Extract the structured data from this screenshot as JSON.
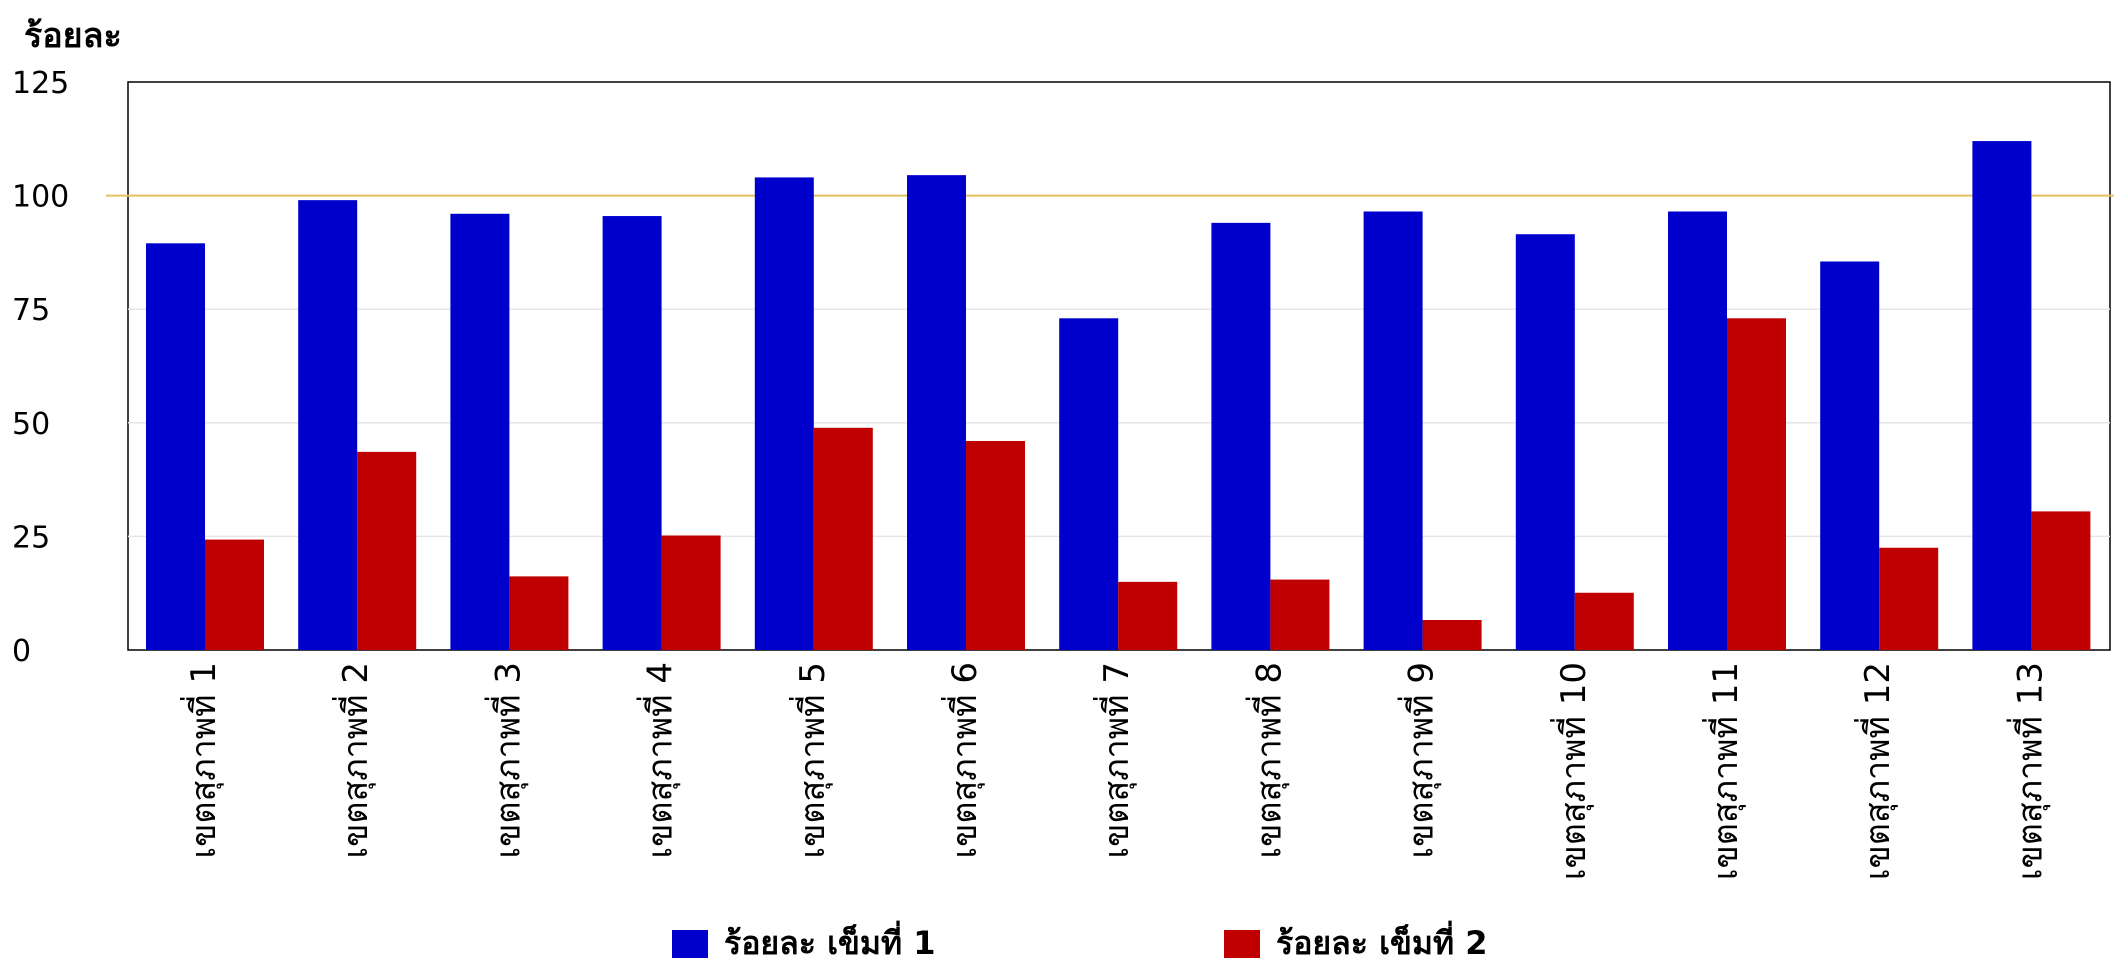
{
  "chart_data": {
    "type": "bar",
    "ylabel": "ร้อยละ",
    "ylim": [
      0,
      125
    ],
    "yticks": [
      0,
      25,
      50,
      75,
      100,
      125
    ],
    "reference_line": 100,
    "grid": true,
    "legend_placement": "bottom",
    "categories": [
      "เขตสุภาพที่ 1",
      "เขตสุภาพที่ 2",
      "เขตสุภาพที่ 3",
      "เขตสุภาพที่ 4",
      "เขตสุภาพที่ 5",
      "เขตสุภาพที่ 6",
      "เขตสุภาพที่ 7",
      "เขตสุภาพที่ 8",
      "เขตสุภาพที่ 9",
      "เขตสุภาพที่ 10",
      "เขตสุภาพที่ 11",
      "เขตสุภาพที่ 12",
      "เขตสุภาพที่ 13"
    ],
    "series": [
      {
        "name": "ร้อยละ เข็มที่ 1",
        "color": "#0000cc",
        "values": [
          89.5,
          99,
          96,
          95.5,
          104,
          104.5,
          73,
          94,
          96.5,
          91.5,
          96.5,
          85.5,
          112
        ]
      },
      {
        "name": "ร้อยละ เข็มที่ 2",
        "color": "#c00000",
        "values": [
          24.3,
          43.6,
          16.2,
          25.2,
          48.9,
          46,
          15,
          15.5,
          6.6,
          12.6,
          73,
          22.5,
          30.5
        ]
      }
    ],
    "colors": {
      "reference_line": "#e6c060",
      "grid": "#e6e6e6",
      "axis": "#000000"
    }
  }
}
